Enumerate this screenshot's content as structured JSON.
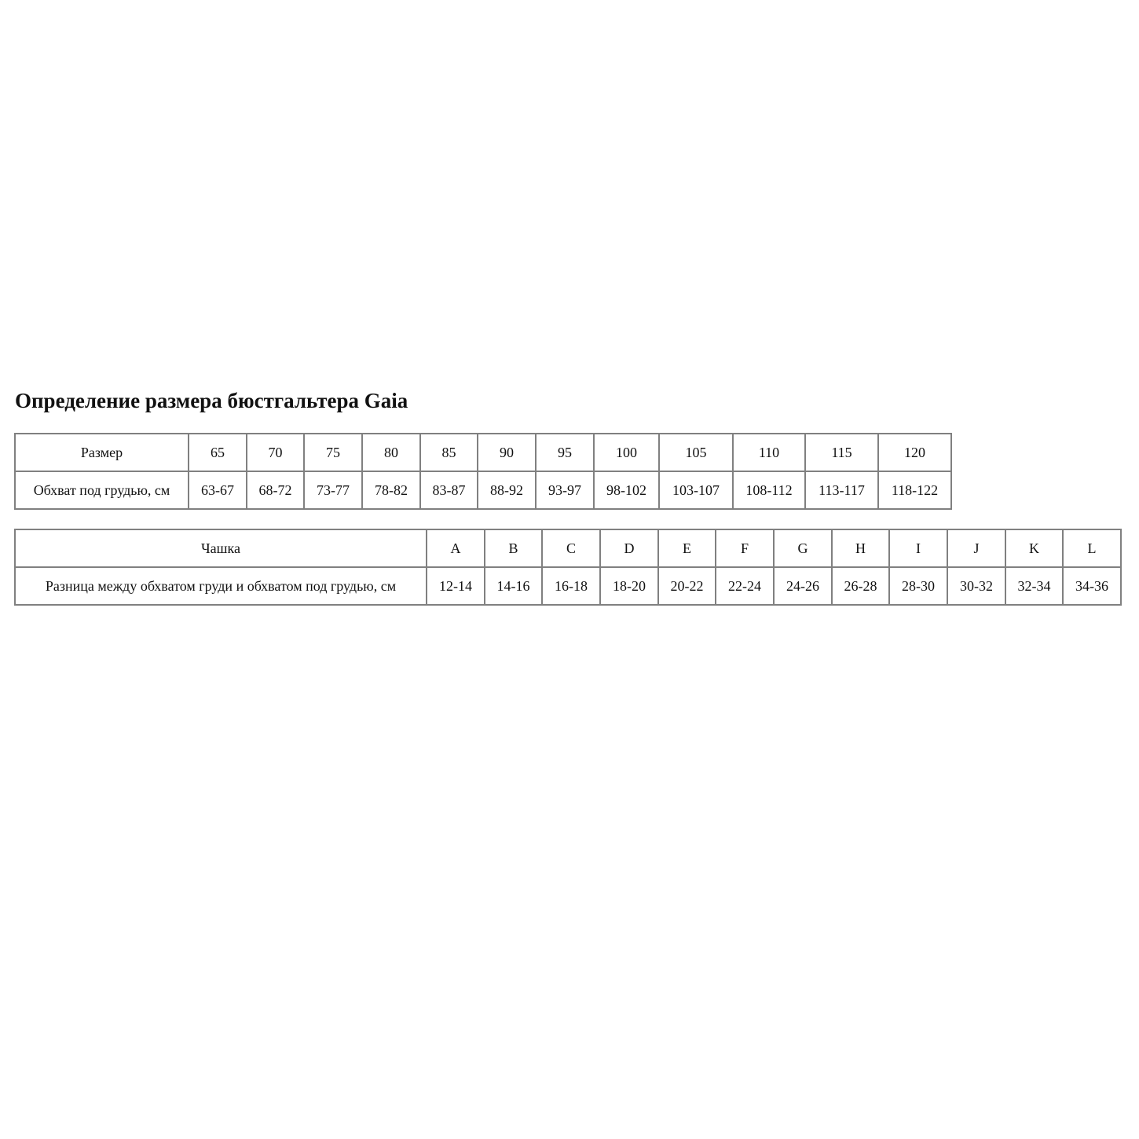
{
  "title": "Определение размера бюстгальтера Gaia",
  "band_table": {
    "header_label": "Размер",
    "sizes": [
      "65",
      "70",
      "75",
      "80",
      "85",
      "90",
      "95",
      "100",
      "105",
      "110",
      "115",
      "120"
    ],
    "row_label": "Обхват под грудью, см",
    "ranges": [
      "63-67",
      "68-72",
      "73-77",
      "78-82",
      "83-87",
      "88-92",
      "93-97",
      "98-102",
      "103-107",
      "108-112",
      "113-117",
      "118-122"
    ]
  },
  "cup_table": {
    "header_label": "Чашка",
    "cups": [
      "A",
      "B",
      "C",
      "D",
      "E",
      "F",
      "G",
      "H",
      "I",
      "J",
      "K",
      "L"
    ],
    "row_label": "Разница между обхватом груди и обхватом под грудью, см",
    "ranges": [
      "12-14",
      "14-16",
      "16-18",
      "18-20",
      "20-22",
      "22-24",
      "24-26",
      "26-28",
      "28-30",
      "30-32",
      "32-34",
      "34-36"
    ]
  }
}
